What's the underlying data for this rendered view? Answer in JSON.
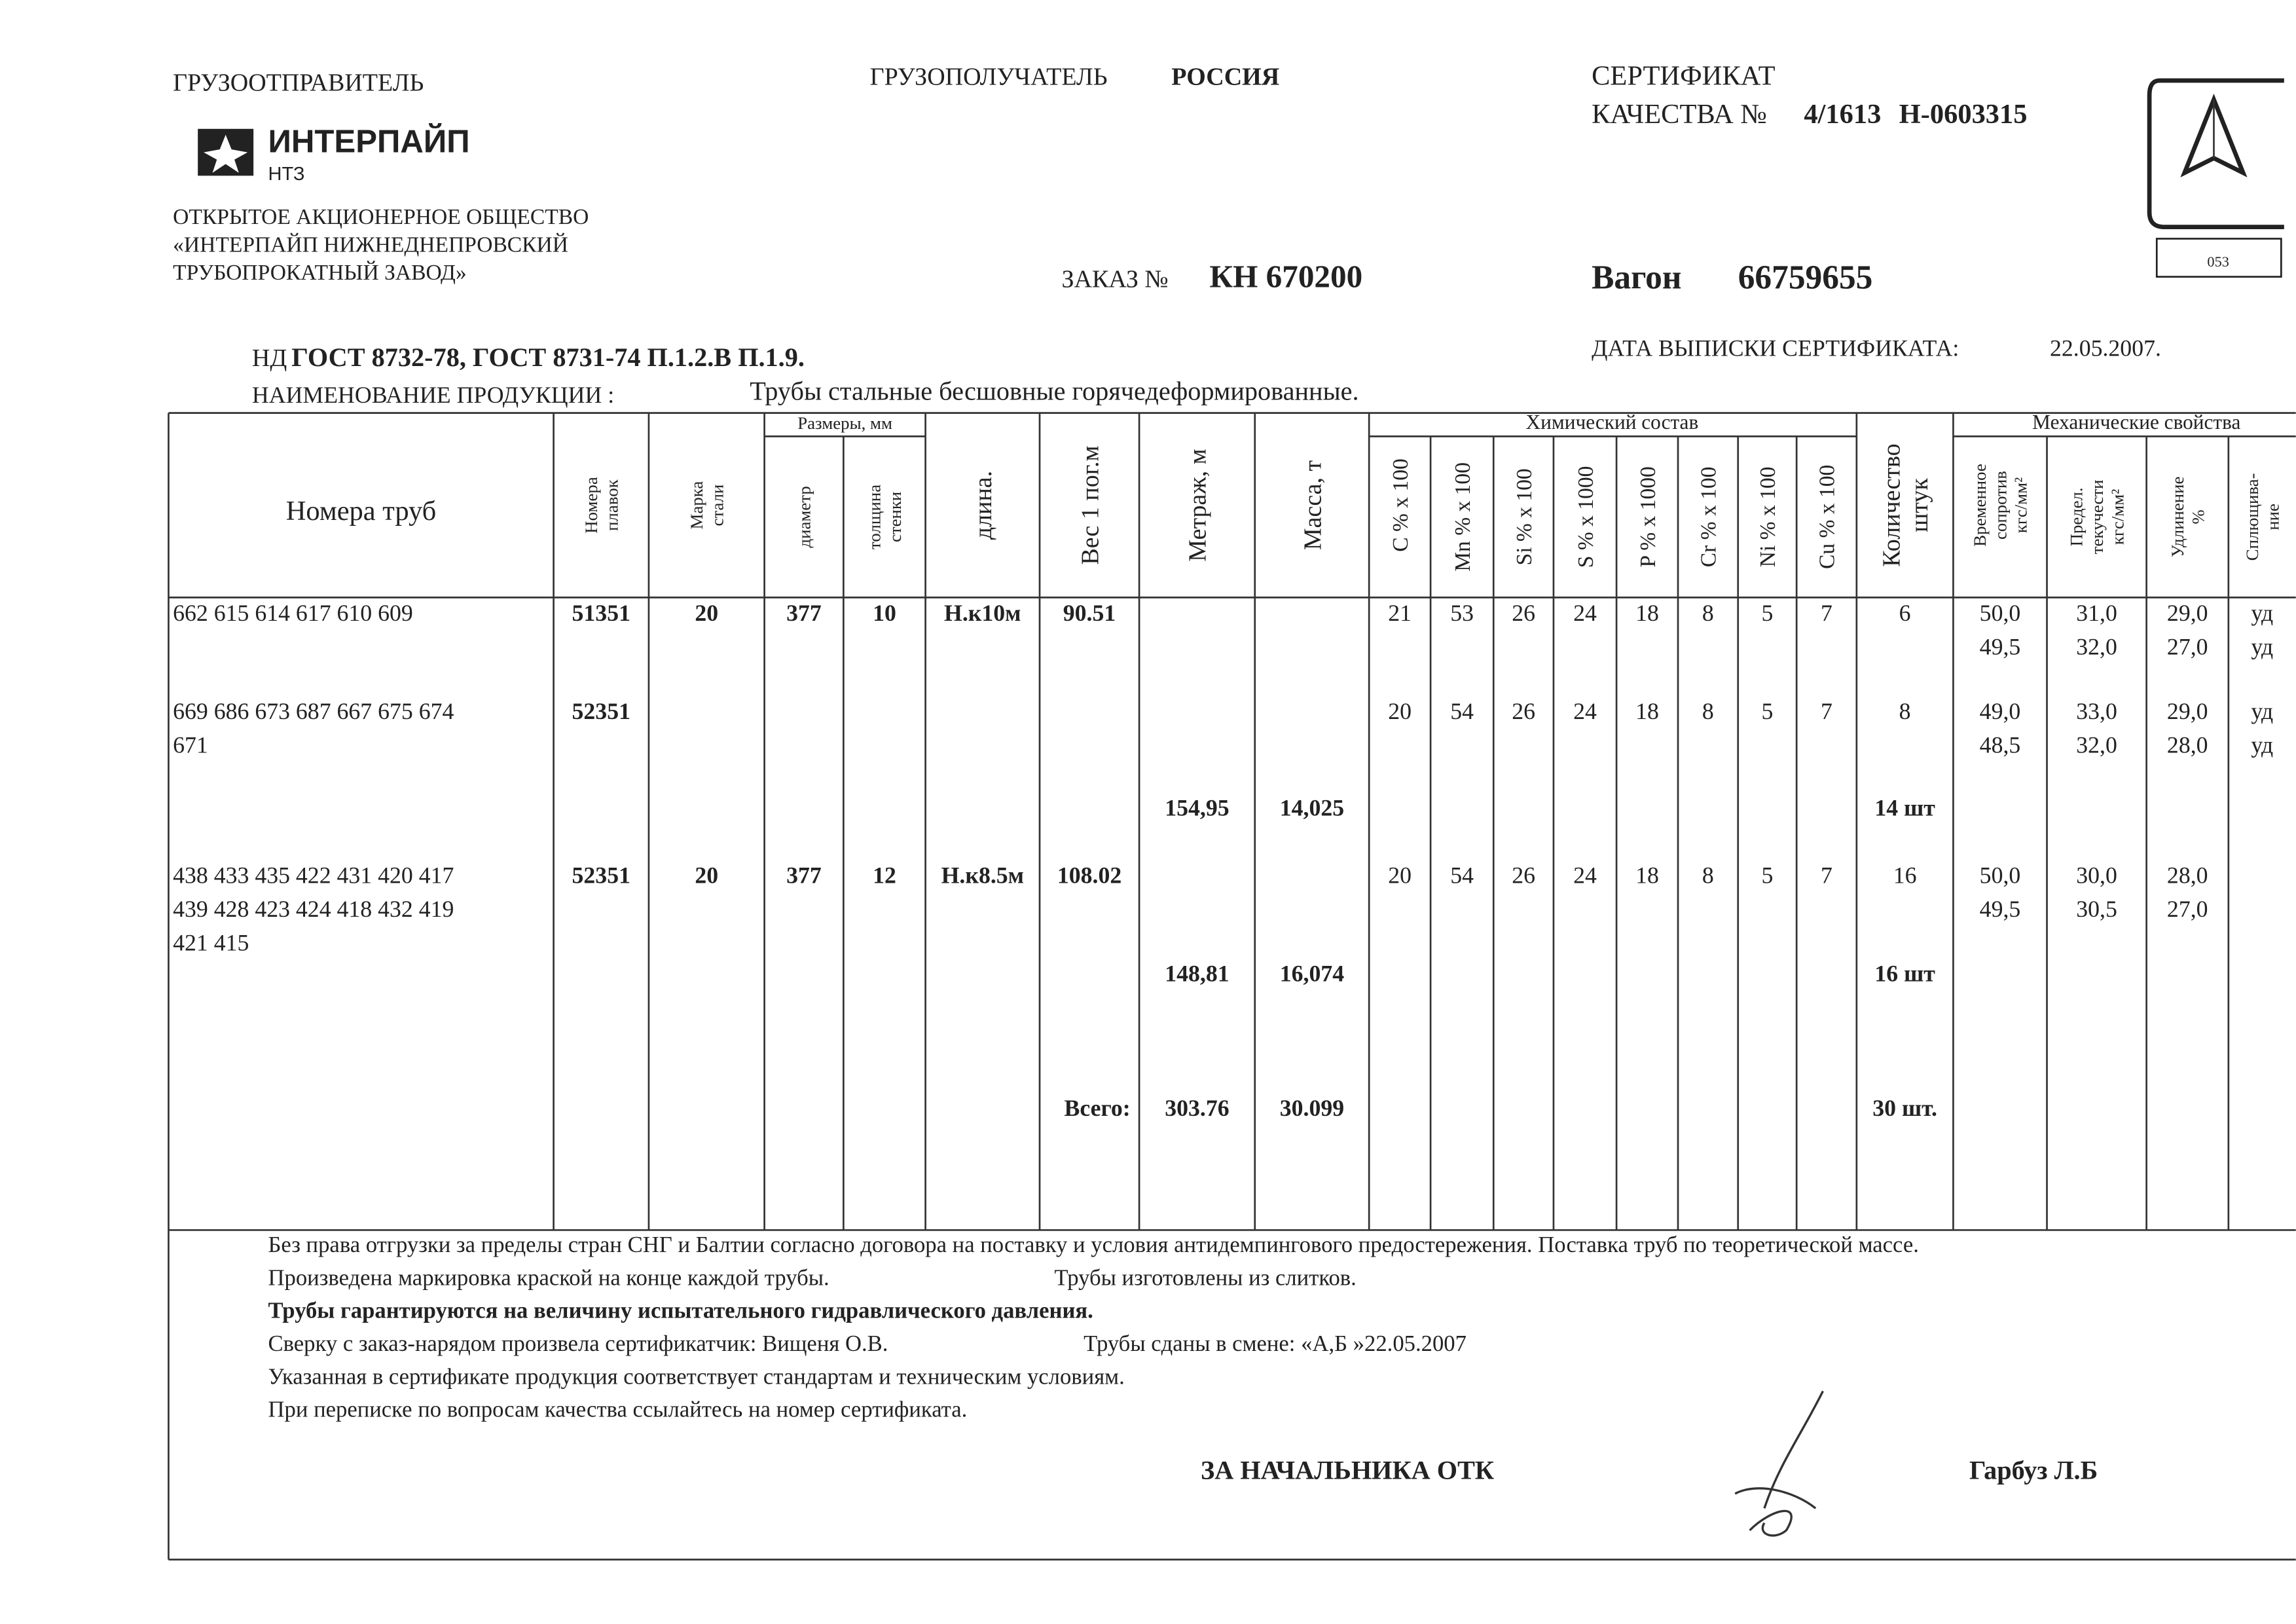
{
  "header": {
    "shipper_label": "ГРУЗООТПРАВИТЕЛЬ",
    "logo_name": "ИНТЕРПАЙП",
    "logo_sub": "НТЗ",
    "company": [
      "ОТКРЫТОЕ АКЦИОНЕРНОЕ ОБЩЕСТВО",
      "«ИНТЕРПАЙП НИЖНЕДНЕПРОВСКИЙ",
      "ТРУБОПРОКАТНЫЙ ЗАВОД»"
    ],
    "consignee_label": "ГРУЗОПОЛУЧАТЕЛЬ",
    "consignee": "РОССИЯ",
    "cert_title": "СЕРТИФИКАТ",
    "cert_label": "КАЧЕСТВА №",
    "cert_number": "4/1613",
    "cert_code": "Н-0603315",
    "stamp_number": "053",
    "order_label": "ЗАКАЗ №",
    "order": "КН 670200",
    "wagon_label": "Вагон",
    "wagon": "66759655",
    "nd_label": "НД",
    "nd": "ГОСТ 8732-78, ГОСТ  8731-74 П.1.2.В П.1.9.",
    "date_label": "ДАТА ВЫПИСКИ  СЕРТИФИКАТА:",
    "date": "22.05.2007.",
    "product_label": "НАИМЕНОВАНИЕ ПРОДУКЦИИ :",
    "product": "Трубы стальные бесшовные горячедеформированные."
  },
  "table": {
    "groups": [
      "Размеры, мм",
      "Химический состав",
      "Механические свойства"
    ],
    "columns": [
      "Номера  труб",
      [
        "Номера",
        "плавок"
      ],
      [
        "Марка",
        "стали"
      ],
      "диаметр",
      [
        "толщина",
        "стенки"
      ],
      "длина.",
      "Вес 1 пог.м",
      "Метраж,  м",
      "Масса,  т",
      "С % x 100",
      "Mn % x 100",
      "Si % x 100",
      "S % x 1000",
      "P % x 1000",
      "Cr % x 100",
      "Ni % x 100",
      "Cu % x 100",
      [
        "Количество",
        "штук"
      ],
      [
        "Временное",
        "сопротив",
        "кгс/мм²"
      ],
      [
        "Предел.",
        "текучести",
        "кгс/мм²"
      ],
      [
        "Удлинение",
        "%"
      ],
      [
        "Сплющива-",
        "ние"
      ]
    ],
    "rows": [
      [
        "662 615 614 617 610 609",
        "51351",
        "20",
        "377",
        "10",
        "Н.к10м",
        "90.51",
        null,
        null,
        "21",
        "53",
        "26",
        "24",
        "18",
        "8",
        "5",
        "7",
        "6",
        [
          "50,0",
          "49,5"
        ],
        [
          "31,0",
          "32,0"
        ],
        [
          "29,0",
          "27,0"
        ],
        [
          "уд",
          "уд"
        ]
      ],
      [
        [
          "669 686 673 687 667 675 674",
          "671"
        ],
        "52351",
        null,
        null,
        null,
        null,
        null,
        null,
        null,
        "20",
        "54",
        "26",
        "24",
        "18",
        "8",
        "5",
        "7",
        "8",
        [
          "49,0",
          "48,5"
        ],
        [
          "33,0",
          "32,0"
        ],
        [
          "29,0",
          "28,0"
        ],
        [
          "уд",
          "уд"
        ]
      ],
      [
        null,
        null,
        null,
        null,
        null,
        null,
        null,
        "154,95",
        "14,025",
        null,
        null,
        null,
        null,
        null,
        null,
        null,
        null,
        "14 шт",
        null,
        null,
        null,
        null
      ],
      [
        [
          "438 433 435 422 431 420 417",
          "439 428 423 424 418 432 419",
          "421 415"
        ],
        "52351",
        "20",
        "377",
        "12",
        "Н.к8.5м",
        "108.02",
        null,
        null,
        "20",
        "54",
        "26",
        "24",
        "18",
        "8",
        "5",
        "7",
        "16",
        [
          "50,0",
          "49,5"
        ],
        [
          "30,0",
          "30,5"
        ],
        [
          "28,0",
          "27,0"
        ],
        null
      ],
      [
        null,
        null,
        null,
        null,
        null,
        null,
        null,
        "148,81",
        "16,074",
        null,
        null,
        null,
        null,
        null,
        null,
        null,
        null,
        "16 шт",
        null,
        null,
        null,
        null
      ],
      [
        null,
        null,
        null,
        null,
        null,
        null,
        "Всего:",
        "303.76",
        "30.099",
        null,
        null,
        null,
        null,
        null,
        null,
        null,
        null,
        "30 шт.",
        null,
        null,
        null,
        null
      ]
    ]
  },
  "notes": [
    [
      "Без права отгрузки за пределы стран СНГ и Балтии согласно договора на поставку и условия антидемпингового предостережения. Поставка труб по теоретической массе."
    ],
    [
      "Произведена  маркировка краской на конце каждой трубы.",
      "Трубы изготовлены из слитков."
    ],
    [
      "Трубы  гарантируются на величину испытательного гидравлического давления."
    ],
    [
      "Сверку с заказ-нарядом произвела сертификатчик: Вищеня О.В.",
      "Трубы сданы в смене: «А,Б »22.05.2007"
    ],
    [
      "Указанная в сертификате продукция соответствует стандартам и техническим условиям."
    ],
    [
      "При переписке по вопросам качества ссылайтесь на номер сертификата."
    ]
  ],
  "signature": {
    "label": "ЗА  НАЧАЛЬНИКА  ОТК",
    "name": "Гарбуз Л.Б"
  }
}
